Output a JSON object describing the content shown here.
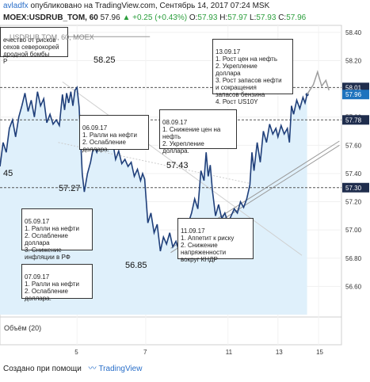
{
  "header": {
    "user": "avladfx",
    "published": "опубликовано на TradingView.com, Сентябрь 14, 2017 07:24 MSK"
  },
  "quote": {
    "symbol": "MOEX:USDRUB_TOM, 60",
    "last": "57.96",
    "change": "+0.25 (+0.43%)",
    "o_label": "O:",
    "o": "57.93",
    "h_label": "H:",
    "h": "57.97",
    "l_label": "L:",
    "l": "57.93",
    "c_label": "C:",
    "c": "57.96"
  },
  "footer": {
    "created": "Создано при помощи",
    "brand": "TradingView"
  },
  "colors": {
    "price_line": "#1f3f7a",
    "area_fill": "#dff0fb",
    "level_line": "#555555",
    "projection": "#9e9e9e",
    "badge_bg": "#1f2d4d",
    "last_badge": "#1e73be"
  },
  "levels": [
    {
      "price": 58.25,
      "label": "58.25"
    },
    {
      "price": 57.43,
      "label": "57.43"
    },
    {
      "price": 57.27,
      "label": "57.27"
    },
    {
      "price": 56.85,
      "label": "56.85"
    },
    {
      "price": 57.45,
      "label": "45"
    }
  ],
  "annotations": [
    {
      "id": "top-left",
      "text": "ечество от рисков\nсехов северокорей\nдродной бомбы\nР",
      "overlay": "USDRUB TOM, 60, MOEX"
    },
    {
      "id": "06-09",
      "text": "06.09.17\n1. Ралли на нефти\n2. Ослабление\nдоллара."
    },
    {
      "id": "08-09",
      "text": "08.09.17\n1. Снижение цен на\nнефть\n2. Укрепление\nдоллара."
    },
    {
      "id": "13-09",
      "text": "13.09.17\n1. Рост цен на нефть\n2. Укрепление\nдоллара\n3. Рост запасов нефти\nи сокращения\nзапасов бензина\n4. Рост US10Y"
    },
    {
      "id": "05-09",
      "text": "05.09.17\n1. Ралли на нефти\n2. Ослабление\nдоллара\n3. Снижение\nинфляции в РФ"
    },
    {
      "id": "07-09",
      "text": "07.09.17\n1. Ралли на нефти\n2. Ослабление\nдоллара."
    },
    {
      "id": "11-09",
      "text": "11.09.17\n1. Аппетит к риску\n2. Снижение\nнапряженности\nвокруг КНДР"
    }
  ],
  "volume_label": "Объём (20)",
  "chart_data": {
    "type": "line",
    "symbol": "MOEX:USDRUB_TOM, 60",
    "ylim": [
      56.4,
      58.45
    ],
    "yticks": [
      "58.40",
      "58.20",
      "58.00",
      "57.80",
      "57.60",
      "57.40",
      "57.20",
      "57.00",
      "56.80",
      "56.60"
    ],
    "xticks": [
      "5",
      "7",
      "11",
      "13",
      "15"
    ],
    "price_badges": [
      {
        "label": "58.01",
        "value": 58.01
      },
      {
        "label": "57.96",
        "value": 57.96,
        "current": true
      },
      {
        "label": "57.78",
        "value": 57.78
      },
      {
        "label": "57.30",
        "value": 57.3
      }
    ],
    "series": [
      {
        "points": [
          [
            0.0,
            57.45
          ],
          [
            0.15,
            57.62
          ],
          [
            0.3,
            57.55
          ],
          [
            0.45,
            57.72
          ],
          [
            0.6,
            57.78
          ],
          [
            0.75,
            57.66
          ],
          [
            0.9,
            57.8
          ],
          [
            1.05,
            57.88
          ],
          [
            1.2,
            57.97
          ],
          [
            1.35,
            57.84
          ],
          [
            1.5,
            57.92
          ],
          [
            1.65,
            57.8
          ],
          [
            1.8,
            57.98
          ],
          [
            1.95,
            57.88
          ],
          [
            2.1,
            57.93
          ],
          [
            2.25,
            57.76
          ],
          [
            2.4,
            57.82
          ],
          [
            2.55,
            57.75
          ],
          [
            2.7,
            57.78
          ],
          [
            2.85,
            57.74
          ],
          [
            3.0,
            57.96
          ],
          [
            3.1,
            57.85
          ],
          [
            3.2,
            57.97
          ],
          [
            3.3,
            57.9
          ],
          [
            3.4,
            57.98
          ],
          [
            3.5,
            57.88
          ],
          [
            3.6,
            57.99
          ],
          [
            3.7,
            58.01
          ],
          [
            3.8,
            57.87
          ],
          [
            3.95,
            57.4
          ],
          [
            4.05,
            57.27
          ],
          [
            4.2,
            57.4
          ],
          [
            4.35,
            57.48
          ],
          [
            4.5,
            57.6
          ],
          [
            4.65,
            57.55
          ],
          [
            4.8,
            57.62
          ],
          [
            4.95,
            57.58
          ],
          [
            5.1,
            57.66
          ],
          [
            5.25,
            57.6
          ],
          [
            5.4,
            57.64
          ],
          [
            5.55,
            57.5
          ],
          [
            5.7,
            57.56
          ],
          [
            5.85,
            57.47
          ],
          [
            6.0,
            57.5
          ],
          [
            6.15,
            57.45
          ],
          [
            6.3,
            57.48
          ],
          [
            6.45,
            57.38
          ],
          [
            6.6,
            57.43
          ],
          [
            6.75,
            57.35
          ],
          [
            6.85,
            57.4
          ],
          [
            6.95,
            57.36
          ],
          [
            7.1,
            57.05
          ],
          [
            7.25,
            57.12
          ],
          [
            7.4,
            56.98
          ],
          [
            7.55,
            57.04
          ],
          [
            7.7,
            56.85
          ],
          [
            7.85,
            56.95
          ],
          [
            8.0,
            56.9
          ],
          [
            8.15,
            56.98
          ],
          [
            8.3,
            56.88
          ],
          [
            8.45,
            56.92
          ],
          [
            8.6,
            56.85
          ],
          [
            8.75,
            56.9
          ],
          [
            8.9,
            56.88
          ],
          [
            9.05,
            57.05
          ],
          [
            9.2,
            57.12
          ],
          [
            9.35,
            57.22
          ],
          [
            9.5,
            57.15
          ],
          [
            9.65,
            57.42
          ],
          [
            9.8,
            57.35
          ],
          [
            9.9,
            57.55
          ],
          [
            10.0,
            57.38
          ],
          [
            10.1,
            57.46
          ],
          [
            10.2,
            57.28
          ],
          [
            10.35,
            57.1
          ],
          [
            10.5,
            57.18
          ],
          [
            10.65,
            57.08
          ],
          [
            10.8,
            57.12
          ],
          [
            10.95,
            57.05
          ],
          [
            11.1,
            57.1
          ],
          [
            11.25,
            57.15
          ],
          [
            11.4,
            57.12
          ],
          [
            11.55,
            57.2
          ],
          [
            11.7,
            57.16
          ],
          [
            11.85,
            57.22
          ],
          [
            12.0,
            57.32
          ],
          [
            12.1,
            57.55
          ],
          [
            12.2,
            57.42
          ],
          [
            12.35,
            57.62
          ],
          [
            12.5,
            57.48
          ],
          [
            12.65,
            57.7
          ],
          [
            12.8,
            57.62
          ],
          [
            12.95,
            57.75
          ],
          [
            13.1,
            57.68
          ],
          [
            13.25,
            57.72
          ],
          [
            13.35,
            57.66
          ],
          [
            13.5,
            57.74
          ],
          [
            13.65,
            57.68
          ],
          [
            13.8,
            57.72
          ],
          [
            13.9,
            57.62
          ],
          [
            14.0,
            57.88
          ],
          [
            14.1,
            57.82
          ],
          [
            14.25,
            57.92
          ],
          [
            14.4,
            57.86
          ],
          [
            14.55,
            57.94
          ],
          [
            14.65,
            57.9
          ],
          [
            14.75,
            57.96
          ]
        ]
      }
    ],
    "projection": [
      [
        14.75,
        57.96
      ],
      [
        15.05,
        58.03
      ],
      [
        15.25,
        58.12
      ],
      [
        15.45,
        58.02
      ],
      [
        15.65,
        58.06
      ],
      [
        15.8,
        57.99
      ]
    ]
  }
}
